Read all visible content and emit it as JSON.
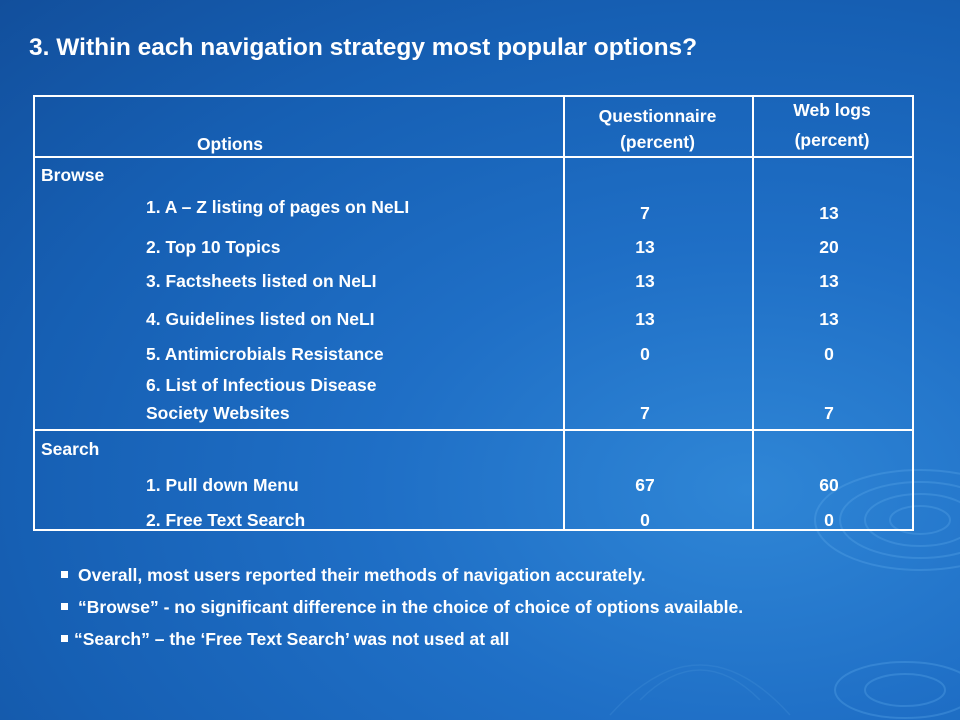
{
  "slide": {
    "title": "3. Within each navigation strategy most popular options?"
  },
  "table": {
    "headers": {
      "options": "Options",
      "questionnaire_line1": "Questionnaire",
      "questionnaire_line2": "(percent)",
      "weblogs_line1": "Web logs",
      "weblogs_line2": "(percent)"
    },
    "sections": [
      {
        "name": "Browse",
        "rows": [
          {
            "label": "1. A – Z listing of pages on NeLI",
            "questionnaire": "7",
            "weblogs": "13"
          },
          {
            "label": "2. Top 10 Topics",
            "questionnaire": "13",
            "weblogs": "20"
          },
          {
            "label": "3. Factsheets listed on NeLI",
            "questionnaire": "13",
            "weblogs": "13"
          },
          {
            "label": "4. Guidelines listed on NeLI",
            "questionnaire": "13",
            "weblogs": "13"
          },
          {
            "label": "5. Antimicrobials Resistance",
            "questionnaire": "0",
            "weblogs": "0"
          },
          {
            "label_line1": "6. List of Infectious Disease",
            "label_line2": "Society Websites",
            "questionnaire": "7",
            "weblogs": "7"
          }
        ]
      },
      {
        "name": "Search",
        "rows": [
          {
            "label": "1. Pull down Menu",
            "questionnaire": "67",
            "weblogs": "60"
          },
          {
            "label": "2. Free Text Search",
            "questionnaire": "0",
            "weblogs": "0"
          }
        ]
      }
    ]
  },
  "bullets": [
    "Overall, most users reported their methods of navigation accurately.",
    "“Browse” - no significant difference in the choice of choice of options available.",
    "“Search” – the ‘Free Text Search’ was not used at all"
  ]
}
